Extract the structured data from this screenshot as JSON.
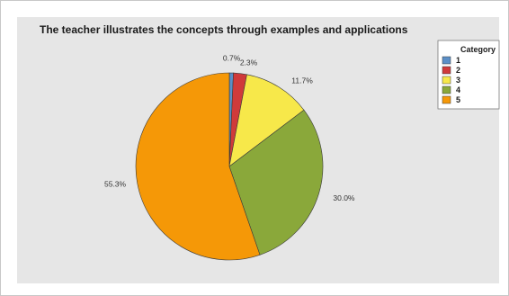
{
  "chart_data": {
    "type": "pie",
    "title": "The teacher illustrates the concepts through examples and applications",
    "legend": {
      "title": "Category",
      "placement": "top-right"
    },
    "slices": [
      {
        "category": "1",
        "value": 0.7,
        "label": "0.7%",
        "color": "#5b8fc7"
      },
      {
        "category": "2",
        "value": 2.3,
        "label": "2.3%",
        "color": "#d03a3a"
      },
      {
        "category": "3",
        "value": 11.7,
        "label": "11.7%",
        "color": "#f7e84a"
      },
      {
        "category": "4",
        "value": 30.0,
        "label": "30.0%",
        "color": "#8aa83a"
      },
      {
        "category": "5",
        "value": 55.3,
        "label": "55.3%",
        "color": "#f59807"
      }
    ]
  }
}
